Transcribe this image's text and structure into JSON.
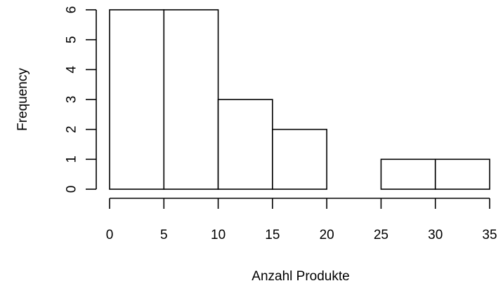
{
  "chart_data": {
    "type": "bar",
    "subtype": "histogram",
    "bins": [
      {
        "x0": 0,
        "x1": 5,
        "count": 6
      },
      {
        "x0": 5,
        "x1": 10,
        "count": 6
      },
      {
        "x0": 10,
        "x1": 15,
        "count": 3
      },
      {
        "x0": 15,
        "x1": 20,
        "count": 2
      },
      {
        "x0": 20,
        "x1": 25,
        "count": 0
      },
      {
        "x0": 25,
        "x1": 30,
        "count": 1
      },
      {
        "x0": 30,
        "x1": 35,
        "count": 1
      }
    ],
    "xlabel": "Anzahl Produkte",
    "ylabel": "Frequency",
    "xticks": [
      "0",
      "5",
      "10",
      "15",
      "20",
      "25",
      "30",
      "35"
    ],
    "yticks": [
      "0",
      "1",
      "2",
      "3",
      "4",
      "5",
      "6"
    ],
    "xlim": [
      0,
      35
    ],
    "ylim": [
      0,
      6
    ],
    "grid": false,
    "bar_fill": "#ffffff",
    "bar_stroke": "#000000"
  }
}
